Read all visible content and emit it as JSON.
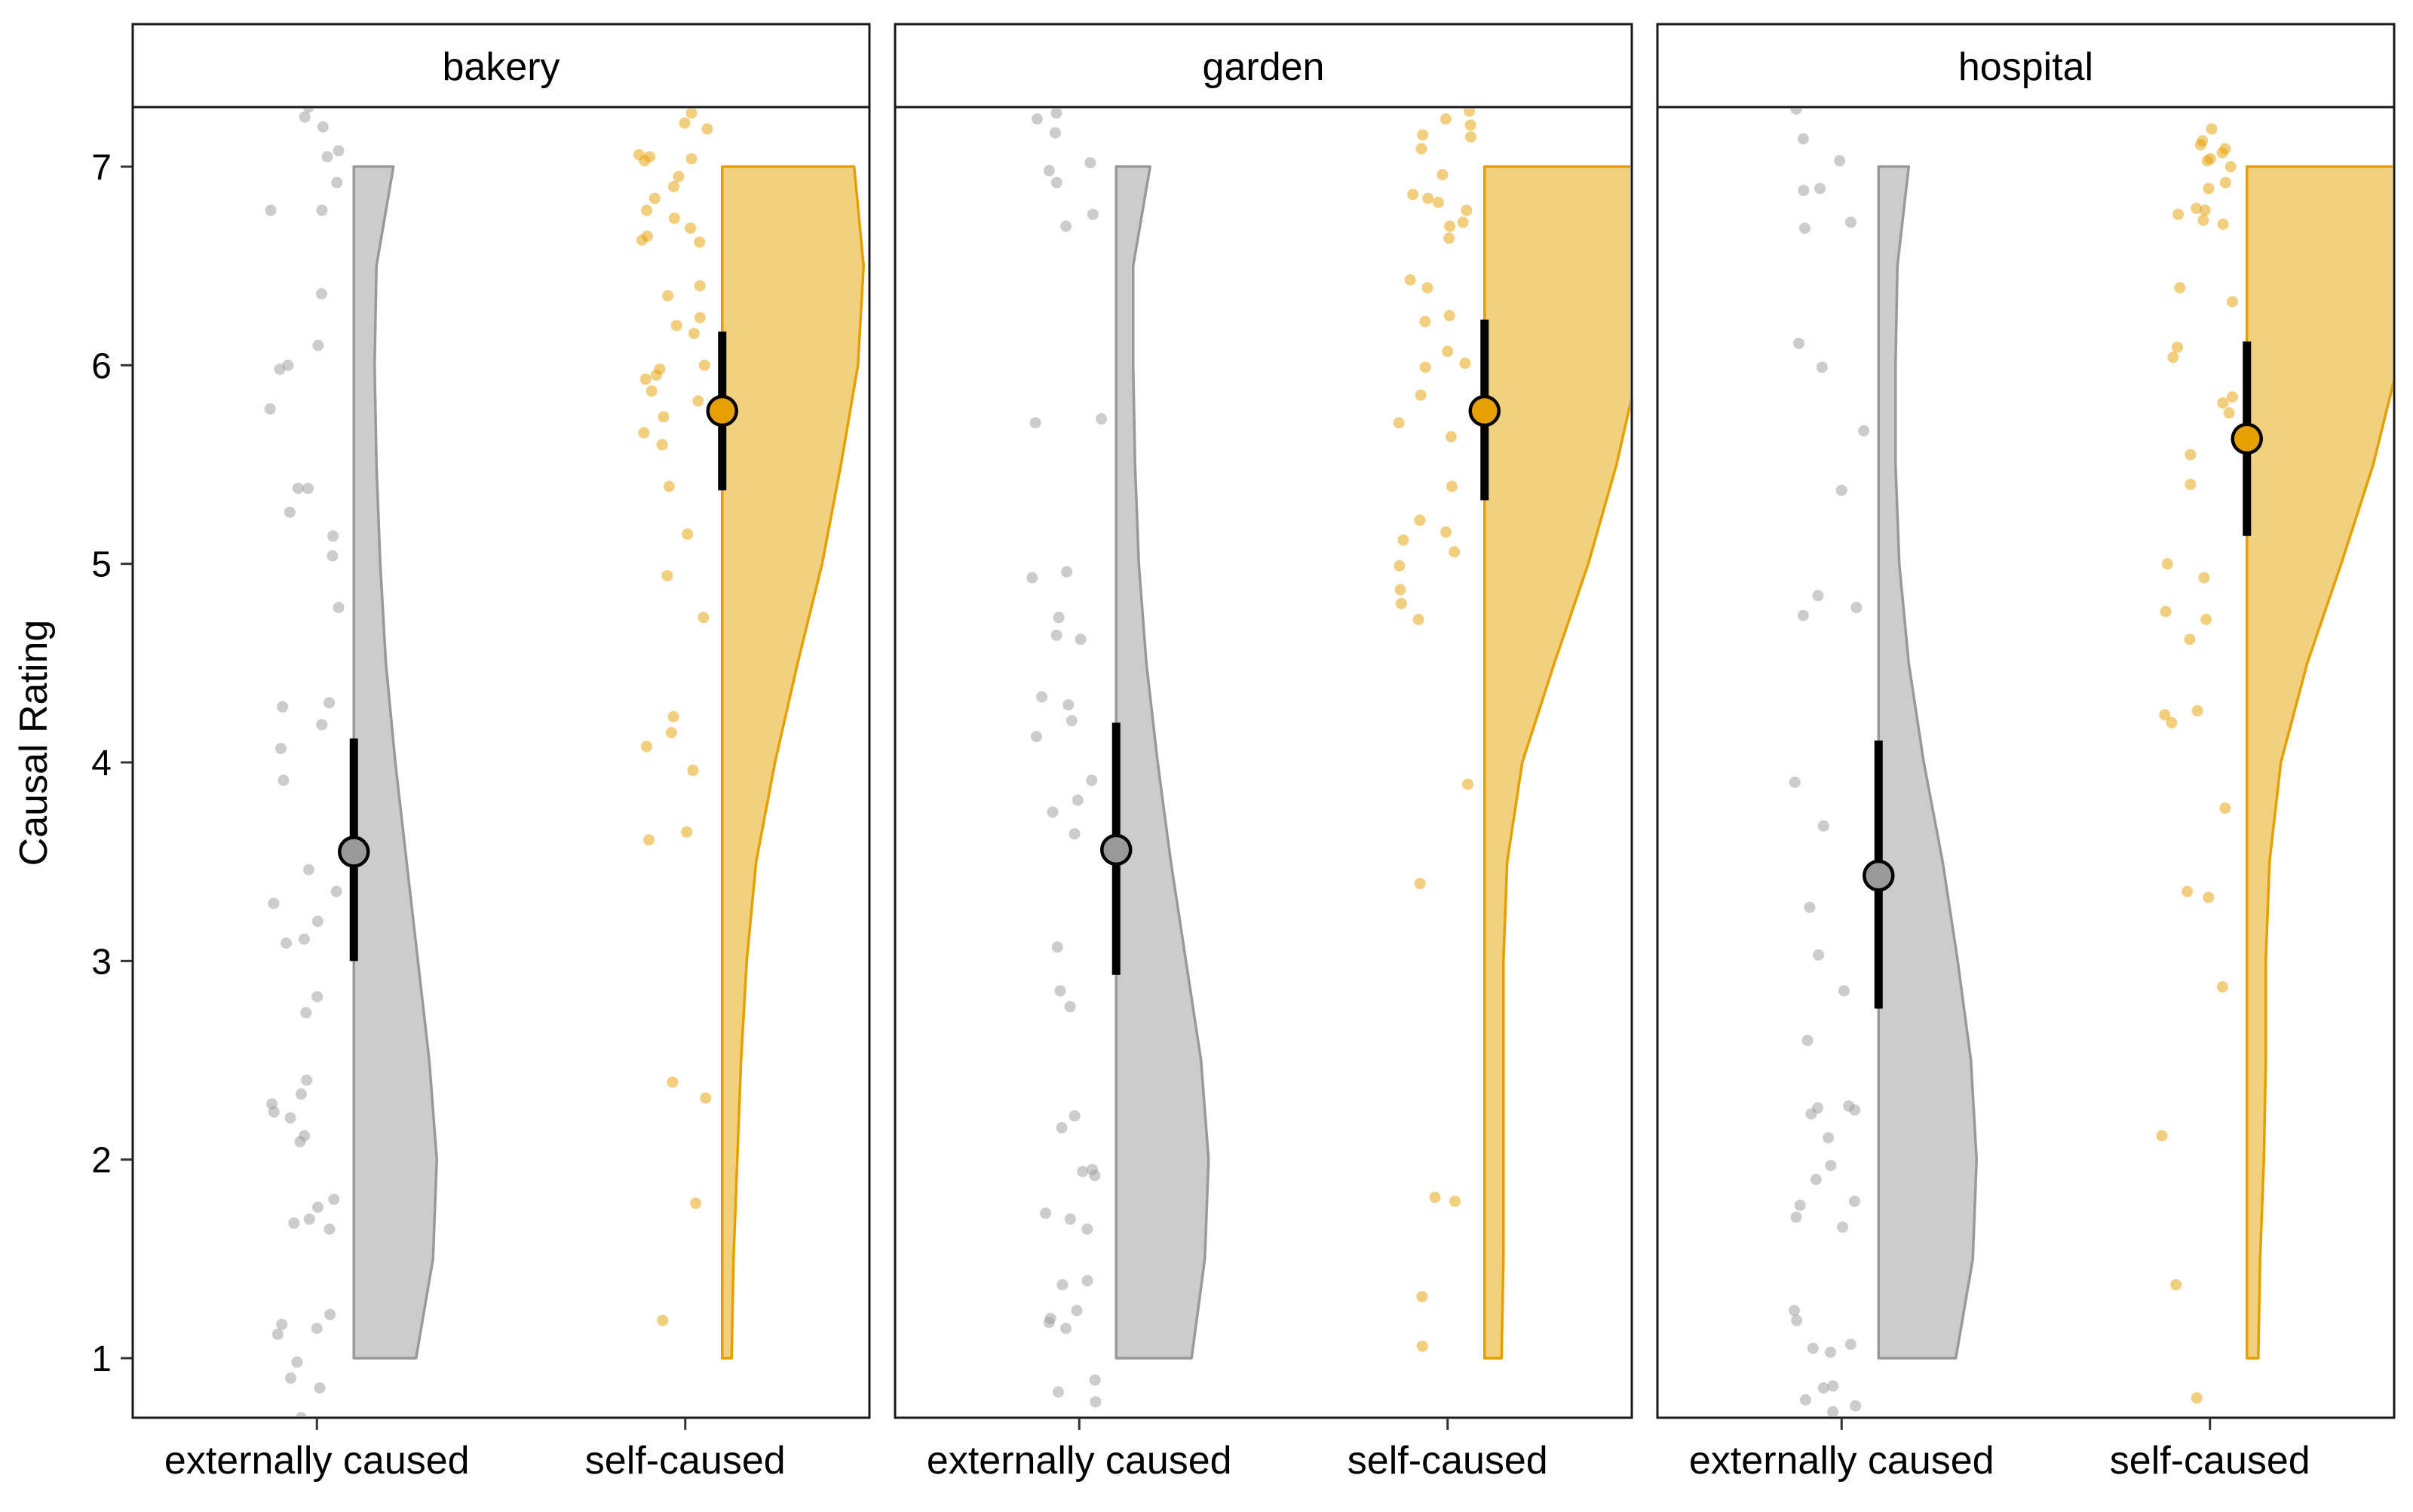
{
  "chart_data": {
    "type": "raincloud",
    "ylabel": "Causal Rating",
    "ylim": [
      0.7,
      7.3
    ],
    "yticks": [
      1,
      2,
      3,
      4,
      5,
      6,
      7
    ],
    "grid": false,
    "legend": "none",
    "groups": [
      "externally caused",
      "self-caused"
    ],
    "colors": {
      "externally caused": "#999999",
      "self-caused": "#E69F00",
      "externally caused_fill": "#CCCCCC",
      "self-caused_fill": "#F2D17E"
    },
    "panels": [
      {
        "label": "bakery",
        "summary": [
          {
            "group": "externally caused",
            "mean": 3.55,
            "lower": 3.0,
            "upper": 4.12
          },
          {
            "group": "self-caused",
            "mean": 5.77,
            "lower": 5.37,
            "upper": 6.17
          }
        ],
        "density": [
          {
            "group": "externally caused",
            "y": [
              1,
              1.5,
              2,
              2.5,
              3,
              3.5,
              4,
              4.5,
              5,
              5.5,
              6,
              6.5,
              7
            ],
            "width": [
              0.33,
              0.42,
              0.44,
              0.4,
              0.34,
              0.28,
              0.22,
              0.17,
              0.14,
              0.12,
              0.11,
              0.12,
              0.21
            ]
          },
          {
            "group": "self-caused",
            "y": [
              1,
              1.5,
              2,
              2.5,
              3,
              3.5,
              4,
              4.5,
              5,
              5.5,
              6,
              6.5,
              7
            ],
            "width": [
              0.05,
              0.06,
              0.08,
              0.1,
              0.13,
              0.18,
              0.28,
              0.4,
              0.53,
              0.63,
              0.72,
              0.75,
              0.7
            ]
          }
        ],
        "points": [
          {
            "group": "externally caused",
            "y": [
              7.3,
              7.25,
              7.2,
              7.08,
              7.05,
              6.92,
              6.78,
              6.78,
              6.36,
              6.1,
              6.0,
              5.98,
              5.78,
              5.38,
              5.38,
              5.26,
              5.14,
              5.04,
              4.78,
              4.3,
              4.28,
              4.19,
              4.07,
              3.91,
              3.46,
              3.35,
              3.29,
              3.2,
              3.11,
              3.09,
              2.82,
              2.74,
              2.4,
              2.33,
              2.28,
              2.24,
              2.21,
              2.12,
              2.09,
              1.8,
              1.76,
              1.7,
              1.68,
              1.65,
              1.22,
              1.17,
              1.15,
              1.12,
              0.98,
              0.9,
              0.85,
              0.7
            ]
          },
          {
            "group": "self-caused",
            "y": [
              7.27,
              7.22,
              7.19,
              7.06,
              7.05,
              7.04,
              7.03,
              6.95,
              6.9,
              6.84,
              6.78,
              6.74,
              6.69,
              6.65,
              6.63,
              6.62,
              6.4,
              6.35,
              6.24,
              6.2,
              6.16,
              6.0,
              5.98,
              5.95,
              5.93,
              5.87,
              5.82,
              5.74,
              5.66,
              5.6,
              5.39,
              5.15,
              4.94,
              4.73,
              4.23,
              4.15,
              4.08,
              3.96,
              3.65,
              3.61,
              2.39,
              2.31,
              1.78,
              1.19
            ]
          }
        ]
      },
      {
        "label": "garden",
        "summary": [
          {
            "group": "externally caused",
            "mean": 3.56,
            "lower": 2.93,
            "upper": 4.2
          },
          {
            "group": "self-caused",
            "mean": 5.77,
            "lower": 5.32,
            "upper": 6.23
          }
        ],
        "density": [
          {
            "group": "externally caused",
            "y": [
              1,
              1.5,
              2,
              2.5,
              3,
              3.5,
              4,
              4.5,
              5,
              5.5,
              6,
              6.5,
              7
            ],
            "width": [
              0.4,
              0.47,
              0.49,
              0.45,
              0.37,
              0.29,
              0.22,
              0.16,
              0.12,
              0.1,
              0.09,
              0.09,
              0.18
            ]
          },
          {
            "group": "self-caused",
            "y": [
              1,
              1.5,
              2,
              2.5,
              3,
              3.5,
              4,
              4.5,
              5,
              5.5,
              6,
              6.5,
              7
            ],
            "width": [
              0.09,
              0.1,
              0.1,
              0.1,
              0.1,
              0.12,
              0.2,
              0.37,
              0.55,
              0.7,
              0.82,
              0.88,
              0.8
            ]
          }
        ],
        "points": [
          {
            "group": "externally caused",
            "y": [
              7.27,
              7.24,
              7.17,
              7.02,
              6.98,
              6.92,
              6.76,
              6.7,
              5.73,
              5.71,
              4.96,
              4.93,
              4.73,
              4.64,
              4.62,
              4.33,
              4.29,
              4.21,
              4.13,
              3.91,
              3.81,
              3.75,
              3.64,
              3.07,
              2.85,
              2.77,
              2.22,
              2.16,
              1.95,
              1.94,
              1.92,
              1.73,
              1.7,
              1.65,
              1.39,
              1.37,
              1.24,
              1.2,
              1.18,
              1.15,
              0.89,
              0.83,
              0.78
            ]
          },
          {
            "group": "self-caused",
            "y": [
              7.28,
              7.24,
              7.21,
              7.16,
              7.15,
              7.09,
              6.96,
              6.86,
              6.84,
              6.82,
              6.78,
              6.72,
              6.7,
              6.64,
              6.43,
              6.39,
              6.25,
              6.22,
              6.07,
              6.01,
              5.99,
              5.85,
              5.71,
              5.64,
              5.39,
              5.22,
              5.16,
              5.12,
              5.06,
              4.99,
              4.87,
              4.8,
              4.72,
              3.89,
              3.39,
              1.81,
              1.79,
              1.31,
              1.06
            ]
          }
        ]
      },
      {
        "label": "hospital",
        "summary": [
          {
            "group": "externally caused",
            "mean": 3.43,
            "lower": 2.76,
            "upper": 4.11
          },
          {
            "group": "self-caused",
            "mean": 5.63,
            "lower": 5.14,
            "upper": 6.12
          }
        ],
        "density": [
          {
            "group": "externally caused",
            "y": [
              1,
              1.5,
              2,
              2.5,
              3,
              3.5,
              4,
              4.5,
              5,
              5.5,
              6,
              6.5,
              7
            ],
            "width": [
              0.41,
              0.5,
              0.52,
              0.49,
              0.42,
              0.34,
              0.24,
              0.16,
              0.11,
              0.09,
              0.09,
              0.1,
              0.16
            ]
          },
          {
            "group": "self-caused",
            "y": [
              1,
              1.5,
              2,
              2.5,
              3,
              3.5,
              4,
              4.5,
              5,
              5.5,
              6,
              6.5,
              7
            ],
            "width": [
              0.06,
              0.07,
              0.09,
              0.1,
              0.1,
              0.12,
              0.18,
              0.32,
              0.5,
              0.67,
              0.8,
              0.84,
              0.78
            ]
          }
        ],
        "points": [
          {
            "group": "externally caused",
            "y": [
              7.29,
              7.14,
              7.03,
              6.89,
              6.88,
              6.72,
              6.69,
              6.11,
              5.99,
              5.67,
              5.37,
              4.84,
              4.78,
              4.74,
              3.9,
              3.68,
              3.27,
              3.03,
              2.85,
              2.6,
              2.27,
              2.26,
              2.25,
              2.23,
              2.11,
              1.97,
              1.9,
              1.79,
              1.77,
              1.71,
              1.66,
              1.24,
              1.19,
              1.07,
              1.05,
              1.03,
              0.86,
              0.85,
              0.79,
              0.76,
              0.73
            ]
          },
          {
            "group": "self-caused",
            "y": [
              7.19,
              7.13,
              7.11,
              7.09,
              7.07,
              7.04,
              7.03,
              7.0,
              6.92,
              6.89,
              6.79,
              6.78,
              6.76,
              6.73,
              6.71,
              6.39,
              6.32,
              6.09,
              6.04,
              5.84,
              5.81,
              5.76,
              5.55,
              5.4,
              5.0,
              4.93,
              4.76,
              4.72,
              4.62,
              4.26,
              4.24,
              4.2,
              3.77,
              3.35,
              3.32,
              2.87,
              2.12,
              1.37,
              0.8
            ]
          }
        ]
      }
    ]
  }
}
